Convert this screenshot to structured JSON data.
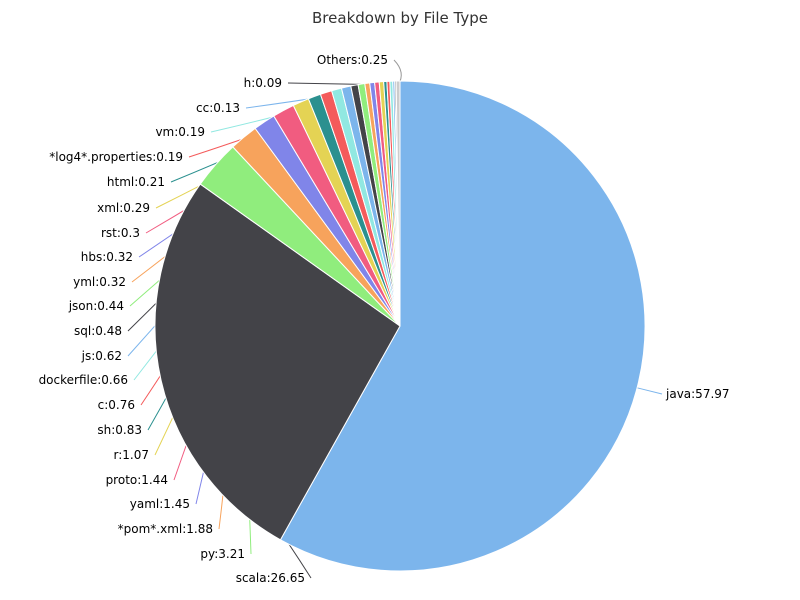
{
  "chart_data": {
    "type": "pie",
    "title": "Breakdown by File Type",
    "slices": [
      {
        "label": "java",
        "value": 57.97,
        "color": "#7cb5ec"
      },
      {
        "label": "scala",
        "value": 26.65,
        "color": "#434348"
      },
      {
        "label": "py",
        "value": 3.21,
        "color": "#90ed7d"
      },
      {
        "label": "*pom*.xml",
        "value": 1.88,
        "color": "#f7a35c"
      },
      {
        "label": "yaml",
        "value": 1.45,
        "color": "#8085e9"
      },
      {
        "label": "proto",
        "value": 1.44,
        "color": "#f15c80"
      },
      {
        "label": "r",
        "value": 1.07,
        "color": "#e4d354"
      },
      {
        "label": "sh",
        "value": 0.83,
        "color": "#2b908f"
      },
      {
        "label": "c",
        "value": 0.76,
        "color": "#f45b5b"
      },
      {
        "label": "dockerfile",
        "value": 0.66,
        "color": "#91e8e1"
      },
      {
        "label": "js",
        "value": 0.62,
        "color": "#7cb5ec"
      },
      {
        "label": "sql",
        "value": 0.48,
        "color": "#434348"
      },
      {
        "label": "json",
        "value": 0.44,
        "color": "#90ed7d"
      },
      {
        "label": "yml",
        "value": 0.32,
        "color": "#f7a35c"
      },
      {
        "label": "hbs",
        "value": 0.32,
        "color": "#8085e9"
      },
      {
        "label": "rst",
        "value": 0.3,
        "color": "#f15c80"
      },
      {
        "label": "xml",
        "value": 0.29,
        "color": "#e4d354"
      },
      {
        "label": "html",
        "value": 0.21,
        "color": "#2b908f"
      },
      {
        "label": "*log4*.properties",
        "value": 0.19,
        "color": "#f45b5b"
      },
      {
        "label": "vm",
        "value": 0.19,
        "color": "#91e8e1"
      },
      {
        "label": "cc",
        "value": 0.13,
        "color": "#7cb5ec"
      },
      {
        "label": "h",
        "value": 0.09,
        "color": "#434348"
      },
      {
        "label": "Others",
        "value": 0.25,
        "color": "#cccccc"
      }
    ]
  }
}
